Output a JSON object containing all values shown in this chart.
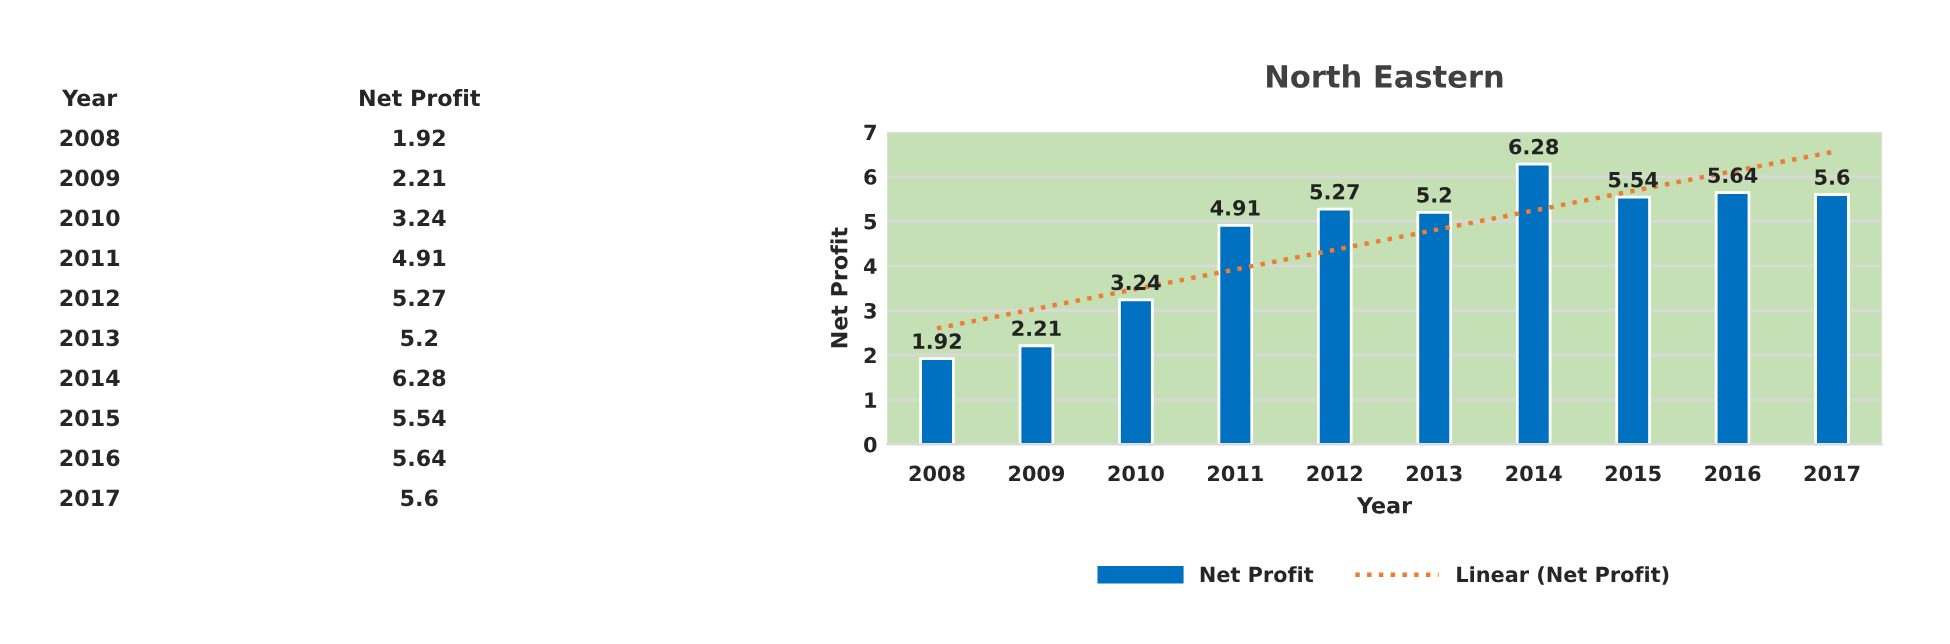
{
  "chart_data": {
    "type": "bar",
    "title": "North Eastern",
    "xlabel": "Year",
    "ylabel": "Net Profit",
    "categories": [
      "2008",
      "2009",
      "2010",
      "2011",
      "2012",
      "2013",
      "2014",
      "2015",
      "2016",
      "2017"
    ],
    "series": [
      {
        "name": "Net Profit",
        "color": "#0070c0",
        "values": [
          1.92,
          2.21,
          3.24,
          4.91,
          5.27,
          5.2,
          6.28,
          5.54,
          5.64,
          5.6
        ],
        "value_labels": [
          "1.92",
          "2.21",
          "3.24",
          "4.91",
          "5.27",
          "5.2",
          "6.28",
          "5.54",
          "5.64",
          "5.6"
        ]
      },
      {
        "name": "Linear (Net Profit)",
        "type": "line",
        "color": "#ed7d31",
        "line_style": "dotted",
        "values": [
          2.6,
          3.04,
          3.48,
          3.92,
          4.36,
          4.8,
          5.24,
          5.68,
          6.12,
          6.55
        ]
      }
    ],
    "ylim": [
      0,
      7
    ],
    "yticks": [
      0,
      1,
      2,
      3,
      4,
      5,
      6,
      7
    ],
    "grid": "y",
    "legend": "bottom"
  }
}
